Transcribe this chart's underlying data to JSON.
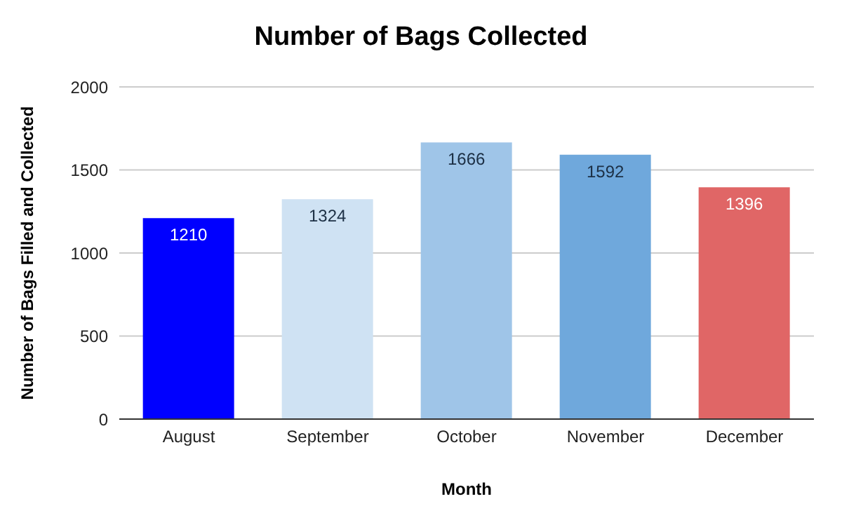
{
  "chart_data": {
    "type": "bar",
    "title": "Number of Bags Collected",
    "xlabel": "Month",
    "ylabel": "Number of Bags Filled and Collected",
    "categories": [
      "August",
      "September",
      "October",
      "November",
      "December"
    ],
    "values": [
      1210,
      1324,
      1666,
      1592,
      1396
    ],
    "colors": [
      "#0000ff",
      "#cfe2f3",
      "#9fc5e8",
      "#6fa8dc",
      "#e06666"
    ],
    "ylim": [
      0,
      2000
    ],
    "yticks": [
      0,
      500,
      1000,
      1500,
      2000
    ],
    "grid": "y",
    "data_labels": true
  }
}
